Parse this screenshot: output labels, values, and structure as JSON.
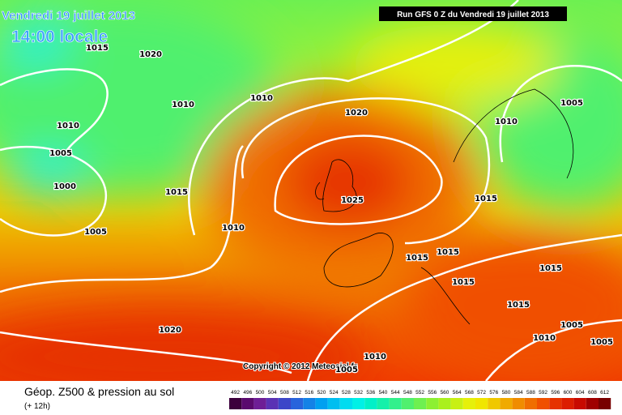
{
  "header": {
    "date": "Vendredi 19 juillet 2013",
    "time": "14:00 locale",
    "run": "Run GFS 0 Z du Vendredi 19 juillet 2013"
  },
  "isobars": [
    "1015",
    "1020",
    "1010",
    "1010",
    "1020",
    "1005",
    "1010",
    "1010",
    "1005",
    "1000",
    "1015",
    "1025",
    "1015",
    "1010",
    "1005",
    "1015",
    "1015",
    "1015",
    "1015",
    "1015",
    "1005",
    "1010",
    "1005",
    "1020",
    "1010",
    "1005"
  ],
  "copyright": "Copyright © 2012 Meteociel.fr",
  "legend": {
    "title": "Géop. Z500 & pression au sol",
    "subtitle": "(+ 12h)",
    "scale": [
      "492",
      "496",
      "500",
      "504",
      "508",
      "512",
      "516",
      "520",
      "524",
      "528",
      "532",
      "536",
      "540",
      "544",
      "548",
      "552",
      "556",
      "560",
      "564",
      "568",
      "572",
      "576",
      "580",
      "584",
      "588",
      "592",
      "596",
      "600",
      "604",
      "608",
      "612"
    ],
    "colors": [
      "#3c003c",
      "#5a0a6e",
      "#6e1e96",
      "#5a32b4",
      "#3c46c8",
      "#2864dc",
      "#1482e6",
      "#00a0f0",
      "#00bef0",
      "#00dcf0",
      "#00f0e6",
      "#00f0c8",
      "#14f0aa",
      "#32f08c",
      "#50f06e",
      "#6ef050",
      "#8cf032",
      "#aaf01e",
      "#c8f014",
      "#e6f00a",
      "#f0e600",
      "#f0c800",
      "#f0aa00",
      "#f08c00",
      "#f06e00",
      "#f05000",
      "#e63200",
      "#dc1e00",
      "#c80a00",
      "#a00000",
      "#780000"
    ]
  }
}
